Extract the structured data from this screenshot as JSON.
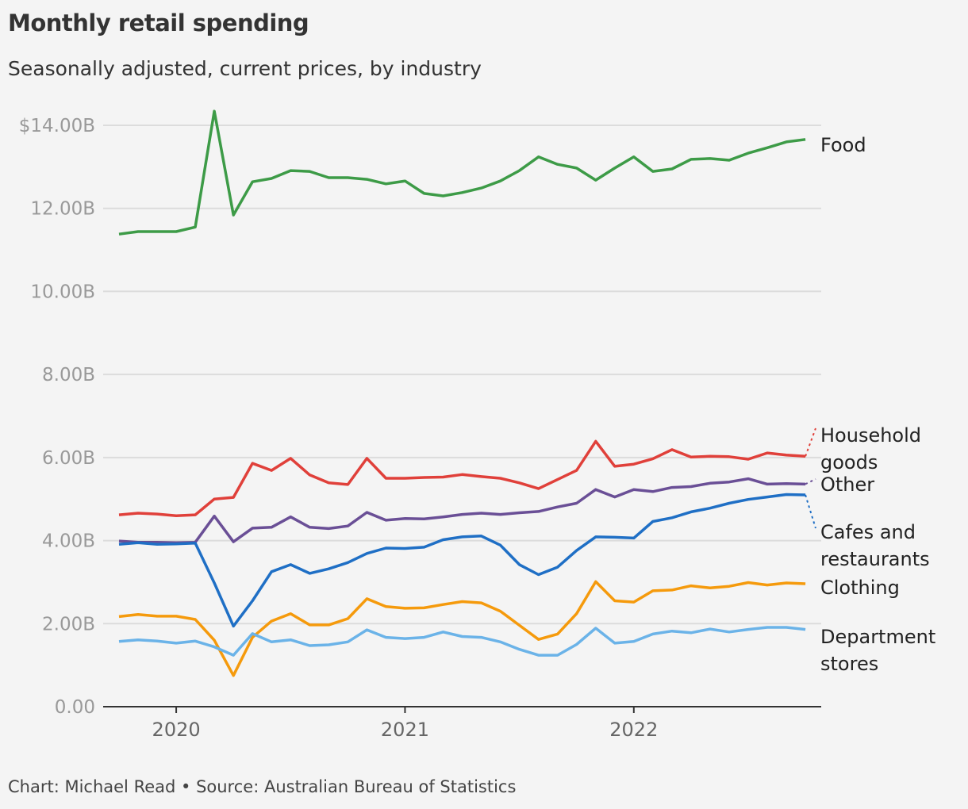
{
  "chart_data": {
    "type": "line",
    "title": "Monthly retail spending",
    "subtitle": "Seasonally adjusted, current prices, by industry",
    "footer": "Chart: Michael Read • Source: Australian Bureau of Statistics",
    "x_start": "2019-10",
    "x_end": "2022-10",
    "x_frequency": "monthly",
    "x_ticks": [
      "2020",
      "2021",
      "2022"
    ],
    "y_ticks": [
      "0.00",
      "2.00B",
      "4.00B",
      "6.00B",
      "8.00B",
      "10.00B",
      "12.00B",
      "$14.00B"
    ],
    "ylim": [
      0,
      14
    ],
    "y_unit": "$ billions",
    "grid": true,
    "legend": "direct labels at right end",
    "series": [
      {
        "name": "Food",
        "color": "#3d9b47",
        "values": [
          11.38,
          11.44,
          11.44,
          11.44,
          11.55,
          14.34,
          11.84,
          12.64,
          12.72,
          12.91,
          12.89,
          12.74,
          12.74,
          12.7,
          12.59,
          12.66,
          12.36,
          12.3,
          12.38,
          12.49,
          12.66,
          12.91,
          13.24,
          13.06,
          12.97,
          12.68,
          12.97,
          13.24,
          12.89,
          12.95,
          13.18,
          13.2,
          13.16,
          13.33,
          13.46,
          13.6,
          13.66
        ]
      },
      {
        "name": "Household goods",
        "color": "#e0403a",
        "values": [
          4.62,
          4.66,
          4.64,
          4.6,
          4.62,
          5.0,
          5.04,
          5.86,
          5.69,
          5.98,
          5.58,
          5.39,
          5.35,
          5.98,
          5.5,
          5.5,
          5.52,
          5.53,
          5.59,
          5.54,
          5.5,
          5.39,
          5.25,
          5.47,
          5.69,
          6.39,
          5.79,
          5.84,
          5.97,
          6.19,
          6.01,
          6.03,
          6.02,
          5.96,
          6.11,
          6.06,
          6.03
        ]
      },
      {
        "name": "Other",
        "color": "#6a4f96",
        "values": [
          3.99,
          3.96,
          3.96,
          3.95,
          3.96,
          4.59,
          3.97,
          4.3,
          4.32,
          4.57,
          4.32,
          4.29,
          4.35,
          4.68,
          4.49,
          4.53,
          4.52,
          4.57,
          4.63,
          4.66,
          4.63,
          4.67,
          4.7,
          4.81,
          4.9,
          5.23,
          5.05,
          5.23,
          5.18,
          5.28,
          5.3,
          5.38,
          5.41,
          5.49,
          5.36,
          5.37,
          5.36
        ]
      },
      {
        "name": "Cafes and restaurants",
        "color": "#1f6fc5",
        "values": [
          3.91,
          3.95,
          3.91,
          3.92,
          3.94,
          2.98,
          1.94,
          2.55,
          3.25,
          3.42,
          3.21,
          3.32,
          3.47,
          3.69,
          3.82,
          3.81,
          3.84,
          4.02,
          4.09,
          4.11,
          3.89,
          3.42,
          3.18,
          3.36,
          3.76,
          4.09,
          4.08,
          4.06,
          4.46,
          4.55,
          4.69,
          4.78,
          4.9,
          4.99,
          5.05,
          5.11,
          5.1
        ]
      },
      {
        "name": "Clothing",
        "color": "#f59a0c",
        "values": [
          2.17,
          2.22,
          2.18,
          2.18,
          2.1,
          1.6,
          0.75,
          1.67,
          2.06,
          2.24,
          1.97,
          1.97,
          2.12,
          2.6,
          2.41,
          2.37,
          2.38,
          2.46,
          2.53,
          2.5,
          2.3,
          1.96,
          1.62,
          1.75,
          2.24,
          3.01,
          2.55,
          2.52,
          2.79,
          2.81,
          2.91,
          2.86,
          2.9,
          2.99,
          2.93,
          2.98,
          2.96
        ]
      },
      {
        "name": "Department stores",
        "color": "#6bb3e8",
        "values": [
          1.57,
          1.61,
          1.58,
          1.53,
          1.58,
          1.44,
          1.24,
          1.76,
          1.56,
          1.61,
          1.47,
          1.49,
          1.56,
          1.85,
          1.67,
          1.64,
          1.67,
          1.8,
          1.69,
          1.67,
          1.56,
          1.38,
          1.24,
          1.24,
          1.5,
          1.89,
          1.53,
          1.57,
          1.75,
          1.82,
          1.78,
          1.87,
          1.8,
          1.86,
          1.91,
          1.91,
          1.86
        ]
      }
    ],
    "label_lines": [
      [
        "Food"
      ],
      [
        "Household",
        "goods"
      ],
      [
        "Other"
      ],
      [
        "Cafes and",
        "restaurants"
      ],
      [
        "Clothing"
      ],
      [
        "Department",
        "stores"
      ]
    ]
  }
}
